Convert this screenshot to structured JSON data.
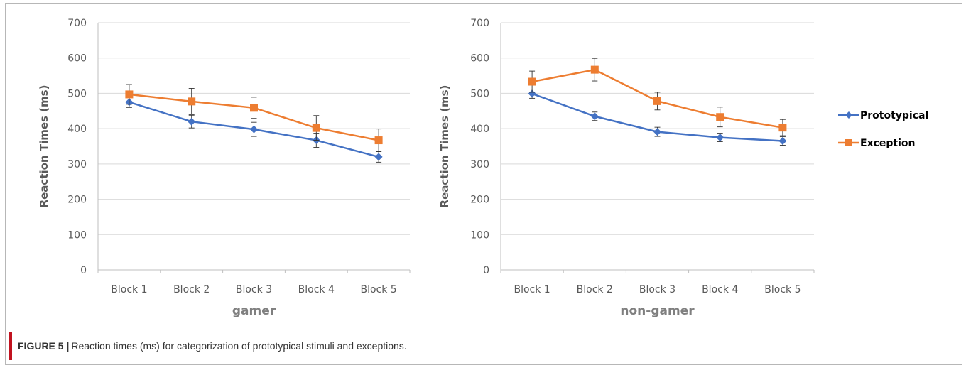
{
  "figure": {
    "label": "FIGURE 5 |",
    "text": "Reaction times (ms) for categorization of prototypical stimuli and exceptions."
  },
  "legend": {
    "items": [
      {
        "name": "Prototypical",
        "color": "#4472c4",
        "marker": "diamond"
      },
      {
        "name": "Exception",
        "color": "#ed7d31",
        "marker": "square"
      }
    ],
    "placement": "right"
  },
  "chart_data": [
    {
      "type": "line",
      "title": "",
      "xlabel": "gamer",
      "ylabel": "Reaction Times  (ms)",
      "categories": [
        "Block 1",
        "Block 2",
        "Block 3",
        "Block 4",
        "Block 5"
      ],
      "ylim": [
        0,
        700
      ],
      "yticks": [
        0,
        100,
        200,
        300,
        400,
        500,
        600,
        700
      ],
      "grid": true,
      "series": [
        {
          "name": "Prototypical",
          "color": "#4472c4",
          "marker": "diamond",
          "values": [
            475,
            420,
            398,
            367,
            320
          ],
          "error": [
            15,
            18,
            20,
            20,
            15
          ]
        },
        {
          "name": "Exception",
          "color": "#ed7d31",
          "marker": "square",
          "values": [
            497,
            477,
            459,
            402,
            367
          ],
          "error": [
            28,
            37,
            30,
            35,
            32
          ]
        }
      ]
    },
    {
      "type": "line",
      "title": "",
      "xlabel": "non-gamer",
      "ylabel": "Reaction Times (ms)",
      "categories": [
        "Block 1",
        "Block 2",
        "Block 3",
        "Block 4",
        "Block 5"
      ],
      "ylim": [
        0,
        700
      ],
      "yticks": [
        0,
        100,
        200,
        300,
        400,
        500,
        600,
        700
      ],
      "grid": true,
      "series": [
        {
          "name": "Prototypical",
          "color": "#4472c4",
          "marker": "diamond",
          "values": [
            499,
            435,
            391,
            375,
            365
          ],
          "error": [
            13,
            12,
            13,
            12,
            12
          ]
        },
        {
          "name": "Exception",
          "color": "#ed7d31",
          "marker": "square",
          "values": [
            533,
            567,
            478,
            433,
            403
          ],
          "error": [
            30,
            32,
            25,
            28,
            23
          ]
        }
      ]
    }
  ]
}
